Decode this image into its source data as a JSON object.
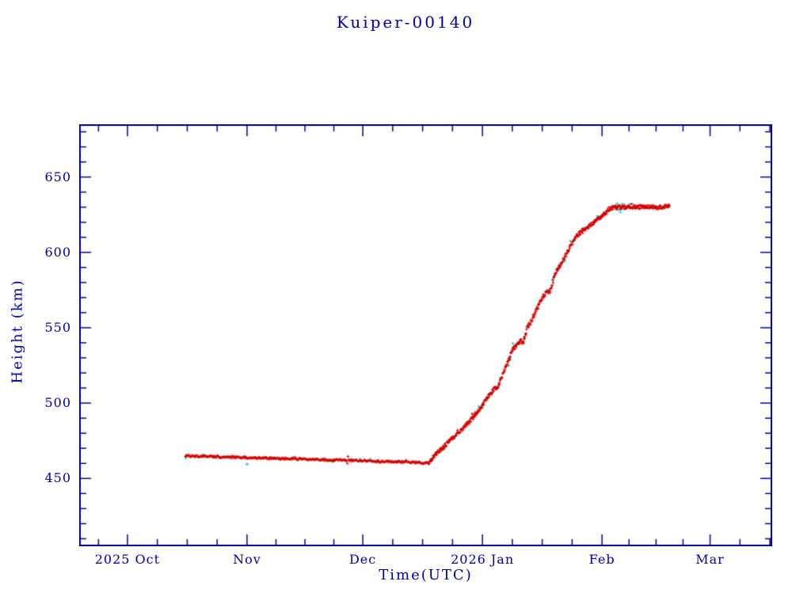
{
  "page": {
    "background": "#ffffff"
  },
  "chart_data": {
    "type": "scatter",
    "title": "Kuiper-00140",
    "xlabel": "Time(UTC)",
    "ylabel": "Height (km)",
    "x_epoch_label": "days since 2025-10-01",
    "x_domain": [
      -12.5,
      167.1
    ],
    "y_domain": [
      405,
      685
    ],
    "y_major_ticks": [
      450,
      500,
      550,
      600,
      650
    ],
    "y_minor_step": 10,
    "grid": "off",
    "legend": "none",
    "colors": {
      "axis": "#000090",
      "text": "#0000a0",
      "primary_points": "#d40000",
      "secondary_points": "#00c6c6",
      "background": "#ffffff"
    },
    "months": [
      {
        "t": -30,
        "len": 30,
        "label": ""
      },
      {
        "t": 0,
        "len": 31,
        "label": "2025 Oct"
      },
      {
        "t": 31,
        "len": 30,
        "label": "Nov"
      },
      {
        "t": 61,
        "len": 31,
        "label": "Dec"
      },
      {
        "t": 92,
        "len": 31,
        "label": "2026 Jan"
      },
      {
        "t": 123,
        "len": 28,
        "label": "Feb"
      },
      {
        "t": 151,
        "len": 31,
        "label": "Mar"
      }
    ],
    "series": [
      {
        "name": "height_km",
        "marker": "plus",
        "color": "#d40000",
        "anchors": [
          [
            15,
            465
          ],
          [
            20,
            464.6
          ],
          [
            26,
            464.2
          ],
          [
            31,
            463.8
          ],
          [
            38,
            463.3
          ],
          [
            45,
            462.8
          ],
          [
            52,
            462.3
          ],
          [
            58,
            461.9
          ],
          [
            64,
            461.4
          ],
          [
            70,
            461.0
          ],
          [
            75,
            460.5
          ],
          [
            77.8,
            460
          ],
          [
            79,
            463
          ],
          [
            80,
            466.5
          ],
          [
            82,
            471
          ],
          [
            84,
            476
          ],
          [
            86,
            481
          ],
          [
            88,
            486
          ],
          [
            90,
            492
          ],
          [
            92,
            499
          ],
          [
            94,
            506
          ],
          [
            95,
            509
          ],
          [
            96,
            511
          ],
          [
            97,
            517
          ],
          [
            98,
            524
          ],
          [
            99,
            530
          ],
          [
            100,
            536
          ],
          [
            101,
            539
          ],
          [
            102,
            541
          ],
          [
            102.6,
            540
          ],
          [
            103.5,
            549
          ],
          [
            104.5,
            554
          ],
          [
            106,
            562
          ],
          [
            107.5,
            570
          ],
          [
            108.5,
            573
          ],
          [
            109.5,
            574
          ],
          [
            110.2,
            580
          ],
          [
            111,
            587
          ],
          [
            112.7,
            594
          ],
          [
            114,
            600
          ],
          [
            114.8,
            604
          ],
          [
            116,
            609
          ],
          [
            116.8,
            612
          ],
          [
            118,
            614
          ],
          [
            118.9,
            616
          ],
          [
            121,
            620
          ],
          [
            123,
            624
          ],
          [
            125,
            629
          ],
          [
            126.5,
            630
          ],
          [
            130,
            630
          ],
          [
            134,
            630.2
          ],
          [
            137,
            630
          ],
          [
            140.5,
            631
          ]
        ]
      }
    ],
    "secondary_series": {
      "name": "secondary_detections",
      "marker": "plus",
      "color": "#00c6c6",
      "points": [
        [
          31,
          459.5
        ],
        [
          80,
          466
        ],
        [
          84,
          476
        ],
        [
          90,
          492
        ],
        [
          94.5,
          507
        ],
        [
          99,
          530
        ],
        [
          101.5,
          540
        ],
        [
          104,
          552
        ],
        [
          106.5,
          563
        ],
        [
          109,
          573.5
        ],
        [
          110.3,
          582
        ],
        [
          110.8,
          586
        ],
        [
          116,
          609
        ],
        [
          121.5,
          621
        ]
      ]
    },
    "render": {
      "flat_rise_boundary_t": 78,
      "jitter_flat_km": 0.7,
      "jitter_rise_km": 1.4,
      "points_per_day_flat": 6,
      "points_per_day_rise": 9,
      "stray_cyan_probability": 0.05
    }
  }
}
